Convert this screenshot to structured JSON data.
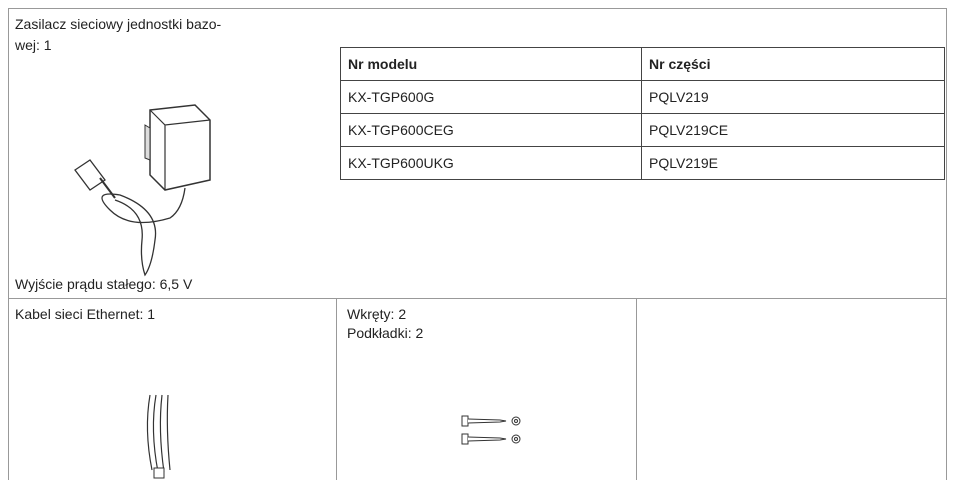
{
  "adapter": {
    "lines": [
      "Zasilacz sieciowy jednostki bazo-",
      "wej: 1"
    ],
    "output": "Wyjście prądu stałego: 6,5 V"
  },
  "table": {
    "header": [
      "Nr modelu",
      "Nr części"
    ],
    "rows": [
      [
        "KX-TGP600G",
        "PQLV219"
      ],
      [
        "KX-TGP600CEG",
        "PQLV219CE"
      ],
      [
        "KX-TGP600UKG",
        "PQLV219E"
      ]
    ]
  },
  "ethernet": "Kabel sieci Ethernet: 1",
  "screws": [
    "Wkręty: 2",
    "Podkładki: 2"
  ]
}
